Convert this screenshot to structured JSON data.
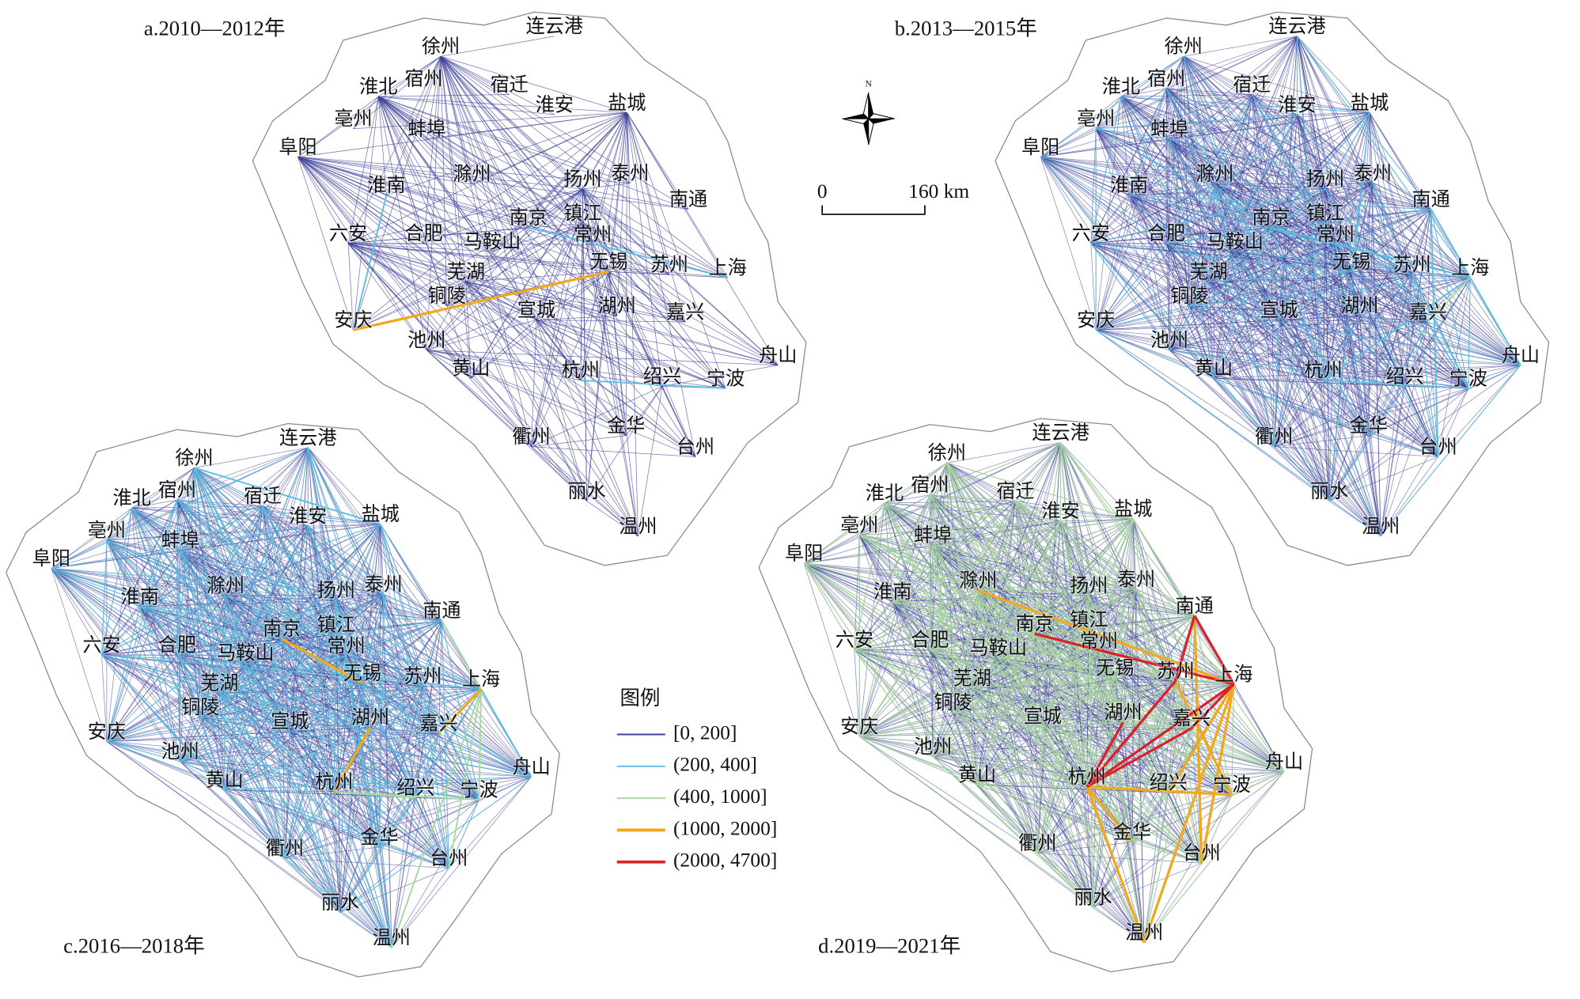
{
  "panels": [
    {
      "title": "a.2010—2012年"
    },
    {
      "title": "b.2013—2015年"
    },
    {
      "title": "c.2016—2018年"
    },
    {
      "title": "d.2019—2021年"
    }
  ],
  "cities": [
    "徐州",
    "连云港",
    "宿州",
    "淮北",
    "宿迁",
    "淮安",
    "盐城",
    "亳州",
    "蚌埠",
    "阜阳",
    "淮南",
    "滁州",
    "扬州",
    "泰州",
    "南通",
    "六安",
    "合肥",
    "南京",
    "镇江",
    "马鞍山",
    "常州",
    "无锡",
    "苏州",
    "上海",
    "芜湖",
    "铜陵",
    "安庆",
    "宣城",
    "湖州",
    "嘉兴",
    "池州",
    "黄山",
    "杭州",
    "绍兴",
    "宁波",
    "舟山",
    "衢州",
    "金华",
    "台州",
    "丽水",
    "温州"
  ],
  "north": "N",
  "scale_bar": {
    "start": "0",
    "end": "160 km"
  },
  "legend": {
    "title": "图例",
    "items": [
      {
        "label": "[0, 200]",
        "color": "#3d4199"
      },
      {
        "label": "(200, 400]",
        "color": "#5bbfe0"
      },
      {
        "label": "(400, 1000]",
        "color": "#a9d89c"
      },
      {
        "label": "(1000, 2000]",
        "color": "#f0a81e"
      },
      {
        "label": "(2000, 4700]",
        "color": "#d9232a"
      }
    ]
  }
}
